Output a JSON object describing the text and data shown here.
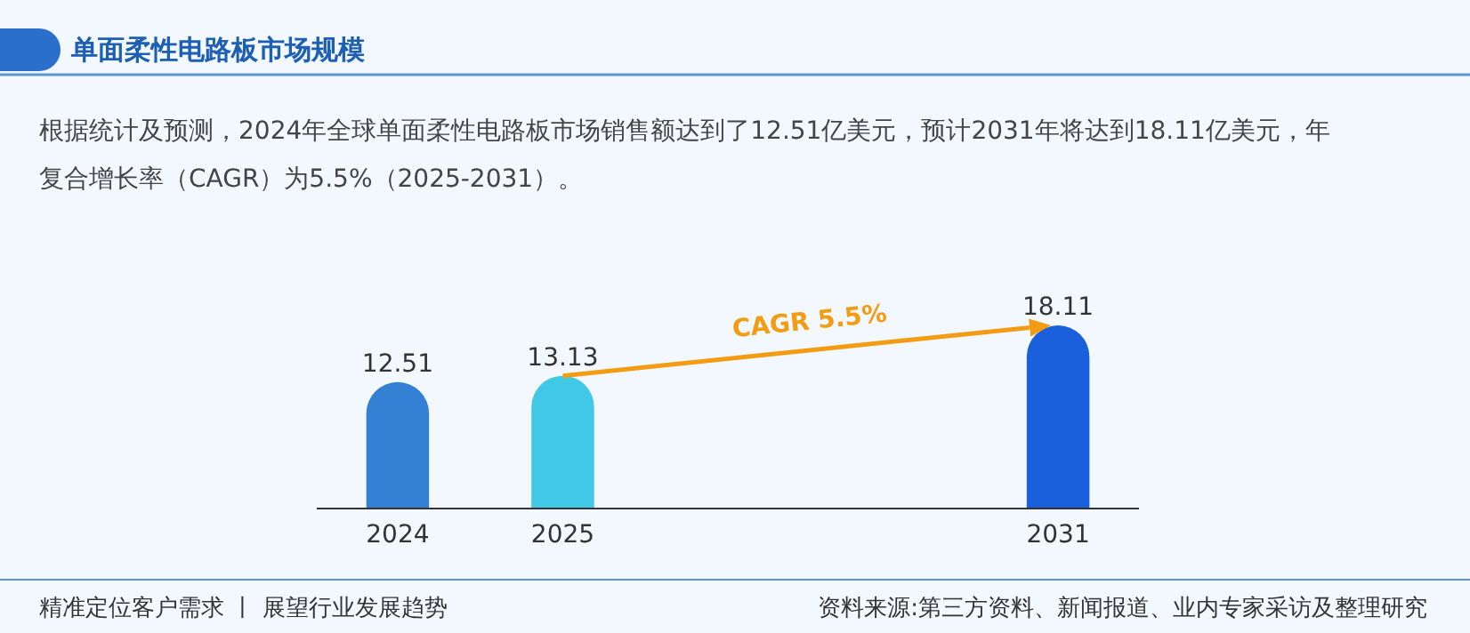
{
  "chart_data": {
    "type": "bar",
    "title": "单面柔性电路板市场规模",
    "subtitle": "根据统计及预测，2024年全球单面柔性电路板市场销售额达到了12.51亿美元，预计2031年将达到18.11亿美元，年复合增长率（CAGR）为5.5%（2025-2031）。",
    "categories": [
      "2024",
      "2025",
      null,
      null,
      "2031"
    ],
    "values": [
      12.51,
      13.13,
      null,
      null,
      18.11
    ],
    "colors": [
      "#3380d4",
      "#40c8e6",
      null,
      null,
      "#1a5fdc"
    ],
    "data_labels": true,
    "tick_labels": "x",
    "annotations": [
      "CAGR 5.5%",
      "精准定位客户需求 丨 展望行业发展趋势",
      "资料来源:第三方资料、新闻报道、业内专家采访及整理研究"
    ]
  }
}
